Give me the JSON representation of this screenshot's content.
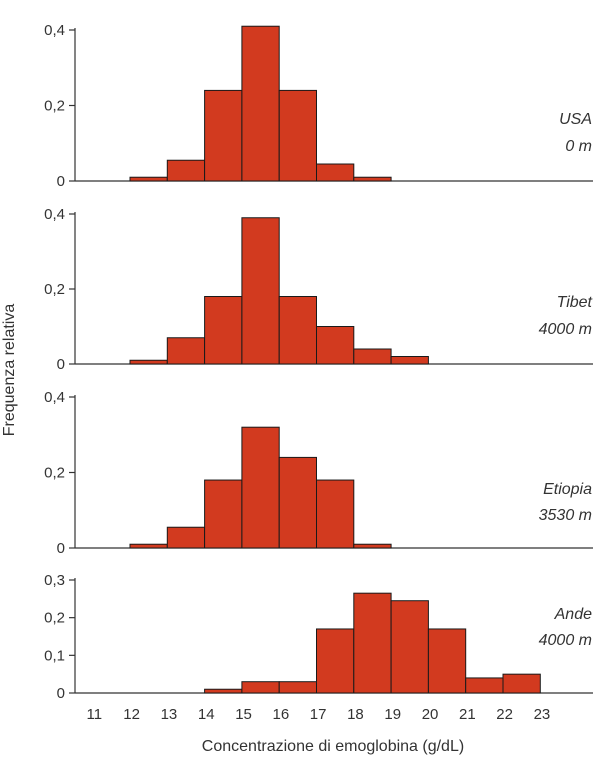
{
  "ylabel": "Frequenza relativa",
  "xlabel": "Concentrazione di emoglobina (g/dL)",
  "x_ticks": [
    "11",
    "12",
    "13",
    "14",
    "15",
    "16",
    "17",
    "18",
    "19",
    "20",
    "21",
    "22",
    "23"
  ],
  "colors": {
    "bar": "#d23a1f",
    "bar_edge": "#1a1a1a",
    "axis": "#333333"
  },
  "chart_data": [
    {
      "type": "bar",
      "region": "USA",
      "altitude": "0 m",
      "x": [
        12,
        13,
        14,
        15,
        16,
        17,
        18
      ],
      "values": [
        0.01,
        0.055,
        0.24,
        0.41,
        0.24,
        0.045,
        0.01
      ],
      "ylim": [
        0,
        0.4
      ],
      "yticks": [
        "0",
        "0,2",
        "0,4"
      ],
      "ytick_values": [
        0,
        0.2,
        0.4
      ]
    },
    {
      "type": "bar",
      "region": "Tibet",
      "altitude": "4000 m",
      "x": [
        12,
        13,
        14,
        15,
        16,
        17,
        18,
        19
      ],
      "values": [
        0.01,
        0.07,
        0.18,
        0.39,
        0.18,
        0.1,
        0.04,
        0.02
      ],
      "ylim": [
        0,
        0.4
      ],
      "yticks": [
        "0",
        "0,2",
        "0,4"
      ],
      "ytick_values": [
        0,
        0.2,
        0.4
      ]
    },
    {
      "type": "bar",
      "region": "Etiopia",
      "altitude": "3530 m",
      "x": [
        12,
        13,
        14,
        15,
        16,
        17,
        18
      ],
      "values": [
        0.01,
        0.055,
        0.18,
        0.32,
        0.24,
        0.18,
        0.01
      ],
      "ylim": [
        0,
        0.4
      ],
      "yticks": [
        "0",
        "0,2",
        "0,4"
      ],
      "ytick_values": [
        0,
        0.2,
        0.4
      ]
    },
    {
      "type": "bar",
      "region": "Ande",
      "altitude": "4000 m",
      "x": [
        14,
        15,
        16,
        17,
        18,
        19,
        20,
        21,
        22
      ],
      "values": [
        0.01,
        0.03,
        0.03,
        0.17,
        0.265,
        0.245,
        0.17,
        0.04,
        0.05
      ],
      "ylim": [
        0,
        0.3
      ],
      "yticks": [
        "0",
        "0,1",
        "0,2",
        "0,3"
      ],
      "ytick_values": [
        0,
        0.1,
        0.2,
        0.3
      ]
    }
  ]
}
